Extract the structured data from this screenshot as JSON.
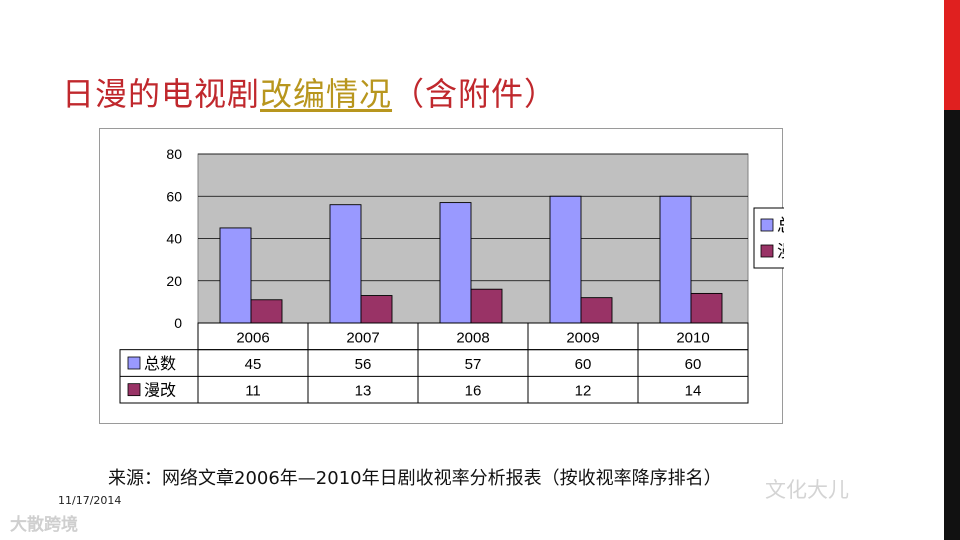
{
  "slide": {
    "title_part1": "日漫的电视剧",
    "title_part2": "改编情况",
    "title_part3": "（含附件）",
    "source": "来源：网络文章2006年—2010年日剧收视率分析报表（按收视率降序排名）",
    "date": "11/17/2014",
    "watermark_left": "大散跨境",
    "watermark_right": "文化大儿"
  },
  "colors": {
    "title_red": "#c0282d",
    "title_gold": "#b8961e",
    "accent_red": "#e0201f",
    "accent_black": "#111111",
    "plot_bg": "#c0c0c0",
    "series_total": "#9999ff",
    "series_manga": "#993366"
  },
  "chart_data": {
    "type": "bar",
    "categories": [
      "2006",
      "2007",
      "2008",
      "2009",
      "2010"
    ],
    "series": [
      {
        "name": "总数",
        "values": [
          45,
          56,
          57,
          60,
          60
        ]
      },
      {
        "name": "漫改",
        "values": [
          11,
          13,
          16,
          12,
          14
        ]
      }
    ],
    "ylim": [
      0,
      80
    ],
    "yticks": [
      "0",
      "20",
      "40",
      "60",
      "80"
    ],
    "grid": true,
    "legend": "right",
    "data_table": true
  }
}
